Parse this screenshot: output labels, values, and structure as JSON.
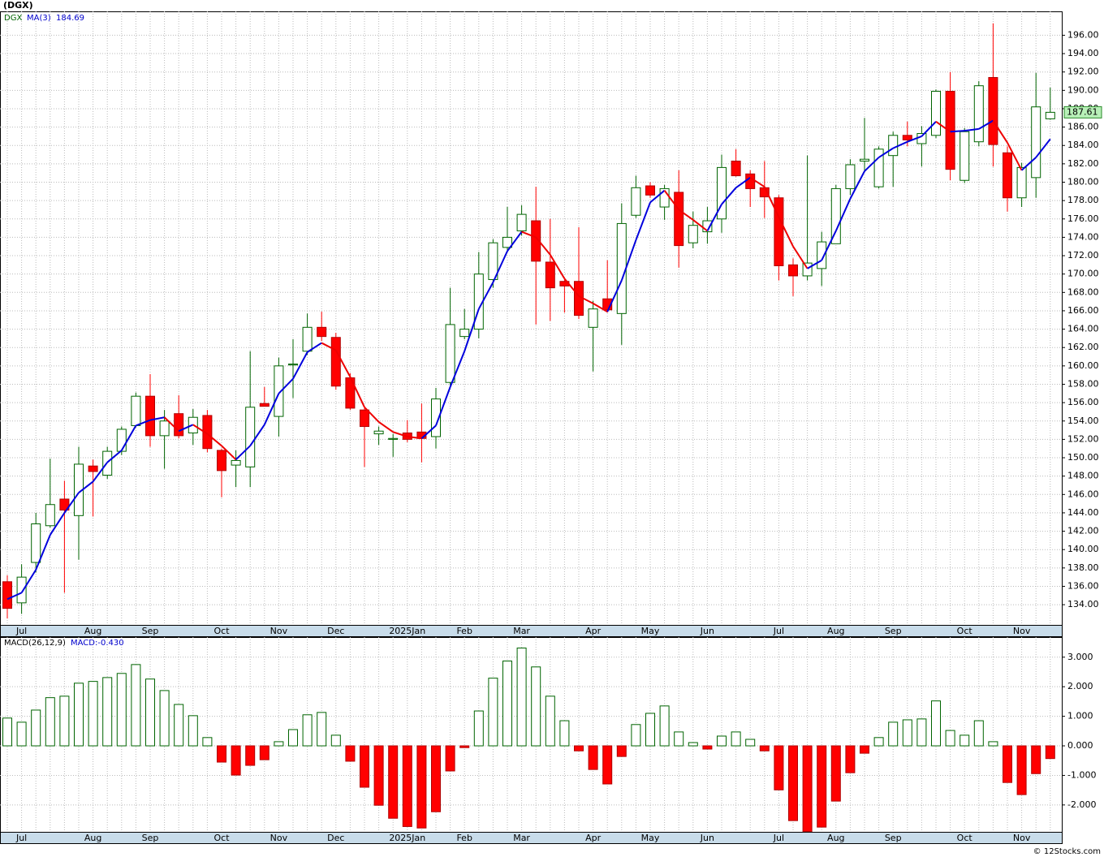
{
  "footer": "© 12Stocks.com",
  "chart_data": [
    {
      "type": "candlestick",
      "title": "(DGX)",
      "ticker": "DGX",
      "categories": [
        null,
        "Jul",
        null,
        null,
        null,
        null,
        "Aug",
        null,
        null,
        null,
        "Sep",
        null,
        null,
        null,
        null,
        "Oct",
        null,
        null,
        null,
        "Nov",
        null,
        null,
        null,
        "Dec",
        null,
        null,
        null,
        null,
        "2025Jan",
        null,
        null,
        null,
        "Feb",
        null,
        null,
        null,
        "Mar",
        null,
        null,
        null,
        null,
        "Apr",
        null,
        null,
        null,
        "May",
        null,
        null,
        null,
        "Jun",
        null,
        null,
        null,
        null,
        "Jul",
        null,
        null,
        null,
        "Aug",
        null,
        null,
        null,
        "Sep",
        null,
        null,
        null,
        null,
        "Oct",
        null,
        null,
        null,
        "Nov",
        null,
        null
      ],
      "open": [
        136.5,
        134.2,
        138.6,
        142.6,
        145.5,
        143.7,
        149.1,
        148.1,
        150.7,
        153.5,
        156.7,
        152.4,
        154.8,
        152.7,
        154.6,
        150.8,
        149.2,
        149.0,
        155.9,
        154.5,
        160.1,
        161.6,
        164.2,
        163.1,
        158.7,
        155.2,
        152.6,
        152.0,
        152.7,
        152.8,
        152.3,
        158.2,
        163.2,
        164.0,
        169.4,
        172.9,
        174.7,
        175.8,
        171.3,
        169.2,
        169.2,
        164.2,
        167.3,
        165.7,
        176.4,
        179.6,
        177.3,
        178.9,
        173.4,
        174.6,
        176.0,
        182.3,
        180.9,
        179.4,
        178.3,
        171.0,
        169.8,
        170.6,
        173.3,
        179.3,
        182.3,
        179.5,
        182.9,
        185.1,
        184.2,
        185.1,
        189.9,
        180.2,
        184.4,
        191.4,
        183.2,
        178.3,
        180.5,
        186.9
      ],
      "high": [
        137.2,
        138.4,
        144.0,
        149.9,
        147.5,
        151.2,
        149.8,
        151.2,
        153.4,
        157.1,
        159.1,
        155.2,
        156.8,
        155.3,
        155.2,
        151.0,
        150.8,
        161.6,
        157.7,
        160.9,
        162.9,
        165.7,
        165.9,
        163.6,
        159.2,
        155.4,
        153.4,
        152.6,
        154.1,
        155.9,
        157.6,
        168.5,
        166.2,
        172.4,
        173.8,
        177.3,
        177.5,
        179.5,
        176.0,
        169.4,
        175.1,
        167.1,
        171.5,
        177.7,
        180.7,
        180.0,
        179.7,
        181.3,
        176.8,
        177.3,
        183.0,
        183.6,
        181.3,
        182.3,
        178.6,
        171.7,
        182.9,
        174.6,
        179.7,
        182.5,
        187.0,
        183.9,
        185.5,
        186.6,
        186.1,
        190.1,
        192.0,
        185.9,
        191.0,
        197.3,
        183.9,
        182.1,
        191.9,
        190.3
      ],
      "low": [
        132.5,
        133.0,
        137.5,
        142.4,
        135.3,
        138.9,
        143.6,
        147.7,
        150.3,
        153.3,
        151.2,
        148.8,
        152.1,
        151.4,
        150.6,
        145.7,
        146.8,
        146.8,
        155.6,
        152.3,
        156.5,
        161.2,
        162.7,
        157.4,
        155.2,
        149.0,
        151.4,
        150.1,
        151.7,
        149.5,
        151.0,
        157.9,
        162.9,
        163.0,
        168.5,
        172.4,
        174.2,
        164.5,
        164.9,
        165.8,
        165.1,
        159.4,
        165.8,
        162.3,
        176.1,
        178.3,
        175.9,
        170.7,
        172.8,
        173.3,
        174.5,
        180.6,
        177.3,
        176.1,
        169.3,
        167.6,
        169.3,
        168.7,
        173.3,
        178.6,
        181.1,
        179.3,
        179.5,
        183.9,
        181.7,
        184.8,
        180.2,
        179.9,
        183.9,
        181.7,
        176.8,
        177.3,
        178.3,
        186.8
      ],
      "close": [
        133.6,
        137.0,
        142.8,
        144.9,
        144.3,
        149.3,
        148.5,
        150.7,
        153.1,
        156.7,
        152.4,
        154.0,
        152.4,
        154.4,
        151.0,
        148.6,
        149.7,
        155.5,
        155.6,
        160.0,
        160.2,
        164.2,
        163.2,
        157.8,
        155.4,
        153.4,
        152.9,
        152.1,
        152.0,
        152.1,
        156.4,
        164.5,
        164.0,
        170.0,
        173.4,
        174.0,
        176.5,
        171.4,
        168.5,
        168.7,
        165.5,
        166.2,
        166.1,
        175.5,
        179.4,
        178.6,
        179.3,
        173.1,
        175.3,
        175.8,
        181.6,
        180.7,
        179.3,
        178.4,
        170.9,
        169.8,
        171.2,
        173.5,
        179.3,
        181.9,
        182.5,
        183.6,
        185.1,
        184.6,
        185.3,
        189.9,
        181.4,
        185.5,
        190.5,
        184.1,
        178.3,
        181.6,
        188.2,
        187.61
      ],
      "ma": {
        "name": "MA(3)",
        "rise_color": "#0000dd",
        "fall_color": "#ee0000",
        "values": [
          134.6,
          135.3,
          137.8,
          141.6,
          144.0,
          146.2,
          147.4,
          149.5,
          150.8,
          153.5,
          154.1,
          154.4,
          152.9,
          153.6,
          152.6,
          151.3,
          149.8,
          151.3,
          153.6,
          157.0,
          158.6,
          161.5,
          162.5,
          161.7,
          158.8,
          155.5,
          153.9,
          152.8,
          152.3,
          152.1,
          153.5,
          157.7,
          161.6,
          166.2,
          169.1,
          172.5,
          174.6,
          174.0,
          172.1,
          169.5,
          167.6,
          166.8,
          165.9,
          169.3,
          173.7,
          177.8,
          179.1,
          177.0,
          175.9,
          174.7,
          177.6,
          179.4,
          180.5,
          179.5,
          176.2,
          173.0,
          170.6,
          171.5,
          174.7,
          178.2,
          181.2,
          182.7,
          183.7,
          184.4,
          185.0,
          186.6,
          185.5,
          185.6,
          185.8,
          186.7,
          184.3,
          181.3,
          182.7,
          184.69
        ]
      },
      "up_color": "#006400",
      "down_color": "#ff0000",
      "ylim": [
        131.8,
        198.6
      ],
      "yticks": [
        {
          "value": 134,
          "label": "134.00"
        },
        {
          "value": 136,
          "label": "136.00"
        },
        {
          "value": 138,
          "label": "138.00"
        },
        {
          "value": 140,
          "label": "140.00"
        },
        {
          "value": 142,
          "label": "142.00"
        },
        {
          "value": 144,
          "label": "144.00"
        },
        {
          "value": 146,
          "label": "146.00"
        },
        {
          "value": 148,
          "label": "148.00"
        },
        {
          "value": 150,
          "label": "150.00"
        },
        {
          "value": 152,
          "label": "152.00"
        },
        {
          "value": 154,
          "label": "154.00"
        },
        {
          "value": 156,
          "label": "156.00"
        },
        {
          "value": 158,
          "label": "158.00"
        },
        {
          "value": 160,
          "label": "160.00"
        },
        {
          "value": 162,
          "label": "162.00"
        },
        {
          "value": 164,
          "label": "164.00"
        },
        {
          "value": 166,
          "label": "166.00"
        },
        {
          "value": 168,
          "label": "168.00"
        },
        {
          "value": 170,
          "label": "170.00"
        },
        {
          "value": 172,
          "label": "172.00"
        },
        {
          "value": 174,
          "label": "174.00"
        },
        {
          "value": 176,
          "label": "176.00"
        },
        {
          "value": 178,
          "label": "178.00"
        },
        {
          "value": 180,
          "label": "180.00"
        },
        {
          "value": 182,
          "label": "182.00"
        },
        {
          "value": 184,
          "label": "184.00"
        },
        {
          "value": 186,
          "label": "186.00"
        },
        {
          "value": 188,
          "label": "188.00"
        },
        {
          "value": 190,
          "label": "190.00"
        },
        {
          "value": 192,
          "label": "192.00"
        },
        {
          "value": 194,
          "label": "194.00"
        },
        {
          "value": 196,
          "label": "196.00"
        }
      ],
      "grid": true
    },
    {
      "type": "bar",
      "name": "MACD(26,12,9)",
      "value_label": "MACD:-0.430",
      "categories": [
        null,
        "Jul",
        null,
        null,
        null,
        null,
        "Aug",
        null,
        null,
        null,
        "Sep",
        null,
        null,
        null,
        null,
        "Oct",
        null,
        null,
        null,
        "Nov",
        null,
        null,
        null,
        "Dec",
        null,
        null,
        null,
        null,
        "2025Jan",
        null,
        null,
        null,
        "Feb",
        null,
        null,
        null,
        "Mar",
        null,
        null,
        null,
        null,
        "Apr",
        null,
        null,
        null,
        "May",
        null,
        null,
        null,
        "Jun",
        null,
        null,
        null,
        null,
        "Jul",
        null,
        null,
        null,
        "Aug",
        null,
        null,
        null,
        "Sep",
        null,
        null,
        null,
        null,
        "Oct",
        null,
        null,
        null,
        "Nov",
        null,
        null
      ],
      "values": [
        0.94,
        0.8,
        1.21,
        1.63,
        1.68,
        2.12,
        2.18,
        2.31,
        2.45,
        2.75,
        2.26,
        1.87,
        1.4,
        1.02,
        0.28,
        -0.55,
        -0.99,
        -0.66,
        -0.47,
        0.14,
        0.55,
        1.05,
        1.13,
        0.36,
        -0.52,
        -1.4,
        -2.01,
        -2.45,
        -2.73,
        -2.78,
        -2.23,
        -0.85,
        -0.06,
        1.18,
        2.29,
        2.87,
        3.31,
        2.67,
        1.68,
        0.85,
        -0.17,
        -0.8,
        -1.29,
        -0.36,
        0.72,
        1.1,
        1.35,
        0.47,
        0.11,
        -0.11,
        0.33,
        0.47,
        0.22,
        -0.17,
        -1.49,
        -2.53,
        -2.9,
        -2.75,
        -1.87,
        -0.91,
        -0.25,
        0.28,
        0.8,
        0.88,
        0.91,
        1.52,
        0.52,
        0.36,
        0.85,
        0.14,
        -1.24,
        -1.65,
        -0.94,
        -0.43
      ],
      "up_color": "#006400",
      "down_color": "#ff0000",
      "ylim": [
        -2.91,
        3.68
      ],
      "yticks": [
        {
          "value": -2,
          "label": "-2.000"
        },
        {
          "value": -1,
          "label": "-1.000"
        },
        {
          "value": 0,
          "label": "0.000"
        },
        {
          "value": 1,
          "label": "1.000"
        },
        {
          "value": 2,
          "label": "2.000"
        },
        {
          "value": 3,
          "label": "3.000"
        }
      ],
      "grid": true
    }
  ]
}
